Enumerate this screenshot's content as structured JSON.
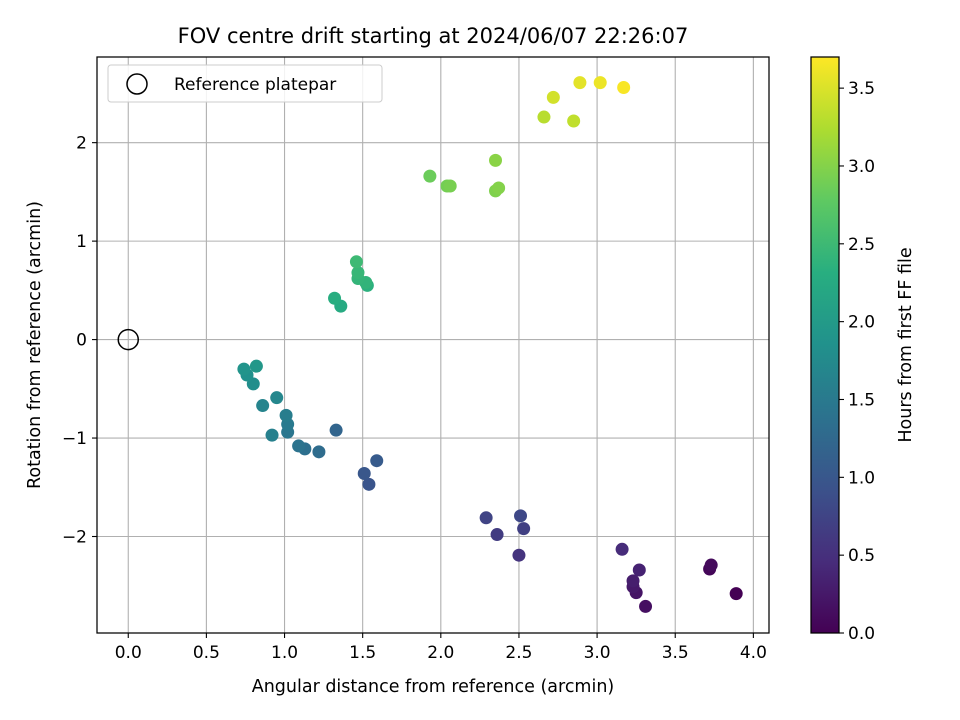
{
  "chart_data": {
    "type": "scatter",
    "title": "FOV centre drift starting at 2024/06/07 22:26:07",
    "xlabel": "Angular distance from reference (arcmin)",
    "ylabel": "Rotation from reference (arcmin)",
    "xlim": [
      -0.2,
      4.1
    ],
    "ylim": [
      -2.98,
      2.87
    ],
    "xticks": [
      0.0,
      0.5,
      1.0,
      1.5,
      2.0,
      2.5,
      3.0,
      3.5,
      4.0
    ],
    "xtick_labels": [
      "0.0",
      "0.5",
      "1.0",
      "1.5",
      "2.0",
      "2.5",
      "3.0",
      "3.5",
      "4.0"
    ],
    "yticks": [
      -2,
      -1,
      0,
      1,
      2
    ],
    "ytick_labels": [
      "−2",
      "−1",
      "0",
      "1",
      "2"
    ],
    "grid": true,
    "legend": {
      "position": "top-left",
      "entries": [
        "Reference platepar"
      ]
    },
    "reference_point": {
      "name": "Reference platepar",
      "x": 0.0,
      "y": 0.0
    },
    "colorbar": {
      "label": "Hours from first FF file",
      "colormap": "viridis",
      "range": [
        0.0,
        3.7
      ],
      "ticks": [
        0.0,
        0.5,
        1.0,
        1.5,
        2.0,
        2.5,
        3.0,
        3.5
      ],
      "tick_labels": [
        "0.0",
        "0.5",
        "1.0",
        "1.5",
        "2.0",
        "2.5",
        "3.0",
        "3.5"
      ]
    },
    "points": [
      {
        "x": 3.89,
        "y": -2.58,
        "t": 0.0
      },
      {
        "x": 3.72,
        "y": -2.33,
        "t": 0.05
      },
      {
        "x": 3.73,
        "y": -2.29,
        "t": 0.1
      },
      {
        "x": 3.31,
        "y": -2.71,
        "t": 0.15
      },
      {
        "x": 3.25,
        "y": -2.57,
        "t": 0.2
      },
      {
        "x": 3.23,
        "y": -2.51,
        "t": 0.25
      },
      {
        "x": 3.23,
        "y": -2.45,
        "t": 0.3
      },
      {
        "x": 3.27,
        "y": -2.34,
        "t": 0.35
      },
      {
        "x": 3.16,
        "y": -2.13,
        "t": 0.45
      },
      {
        "x": 2.5,
        "y": -2.19,
        "t": 0.55
      },
      {
        "x": 2.36,
        "y": -1.98,
        "t": 0.65
      },
      {
        "x": 2.53,
        "y": -1.92,
        "t": 0.7
      },
      {
        "x": 2.29,
        "y": -1.81,
        "t": 0.75
      },
      {
        "x": 2.51,
        "y": -1.79,
        "t": 0.8
      },
      {
        "x": 1.54,
        "y": -1.47,
        "t": 0.95
      },
      {
        "x": 1.51,
        "y": -1.36,
        "t": 1.0
      },
      {
        "x": 1.59,
        "y": -1.23,
        "t": 1.05
      },
      {
        "x": 1.33,
        "y": -0.92,
        "t": 1.2
      },
      {
        "x": 1.22,
        "y": -1.14,
        "t": 1.3
      },
      {
        "x": 1.13,
        "y": -1.11,
        "t": 1.35
      },
      {
        "x": 1.09,
        "y": -1.08,
        "t": 1.4
      },
      {
        "x": 1.02,
        "y": -0.94,
        "t": 1.45
      },
      {
        "x": 1.02,
        "y": -0.86,
        "t": 1.5
      },
      {
        "x": 1.01,
        "y": -0.77,
        "t": 1.55
      },
      {
        "x": 0.92,
        "y": -0.97,
        "t": 1.6
      },
      {
        "x": 0.86,
        "y": -0.67,
        "t": 1.65
      },
      {
        "x": 0.95,
        "y": -0.59,
        "t": 1.7
      },
      {
        "x": 0.8,
        "y": -0.45,
        "t": 1.8
      },
      {
        "x": 0.76,
        "y": -0.36,
        "t": 1.85
      },
      {
        "x": 0.74,
        "y": -0.3,
        "t": 1.9
      },
      {
        "x": 0.82,
        "y": -0.27,
        "t": 1.95
      },
      {
        "x": 1.36,
        "y": 0.34,
        "t": 2.25
      },
      {
        "x": 1.32,
        "y": 0.42,
        "t": 2.3
      },
      {
        "x": 1.53,
        "y": 0.55,
        "t": 2.35
      },
      {
        "x": 1.52,
        "y": 0.58,
        "t": 2.4
      },
      {
        "x": 1.47,
        "y": 0.62,
        "t": 2.42
      },
      {
        "x": 1.47,
        "y": 0.68,
        "t": 2.45
      },
      {
        "x": 1.46,
        "y": 0.79,
        "t": 2.5
      },
      {
        "x": 1.93,
        "y": 1.66,
        "t": 2.85
      },
      {
        "x": 2.04,
        "y": 1.56,
        "t": 2.9
      },
      {
        "x": 2.06,
        "y": 1.56,
        "t": 2.93
      },
      {
        "x": 2.35,
        "y": 1.51,
        "t": 2.97
      },
      {
        "x": 2.37,
        "y": 1.54,
        "t": 3.0
      },
      {
        "x": 2.35,
        "y": 1.82,
        "t": 3.03
      },
      {
        "x": 2.66,
        "y": 2.26,
        "t": 3.3
      },
      {
        "x": 2.85,
        "y": 2.22,
        "t": 3.35
      },
      {
        "x": 2.72,
        "y": 2.46,
        "t": 3.45
      },
      {
        "x": 2.89,
        "y": 2.61,
        "t": 3.55
      },
      {
        "x": 3.02,
        "y": 2.61,
        "t": 3.6
      },
      {
        "x": 3.17,
        "y": 2.56,
        "t": 3.67
      }
    ]
  }
}
